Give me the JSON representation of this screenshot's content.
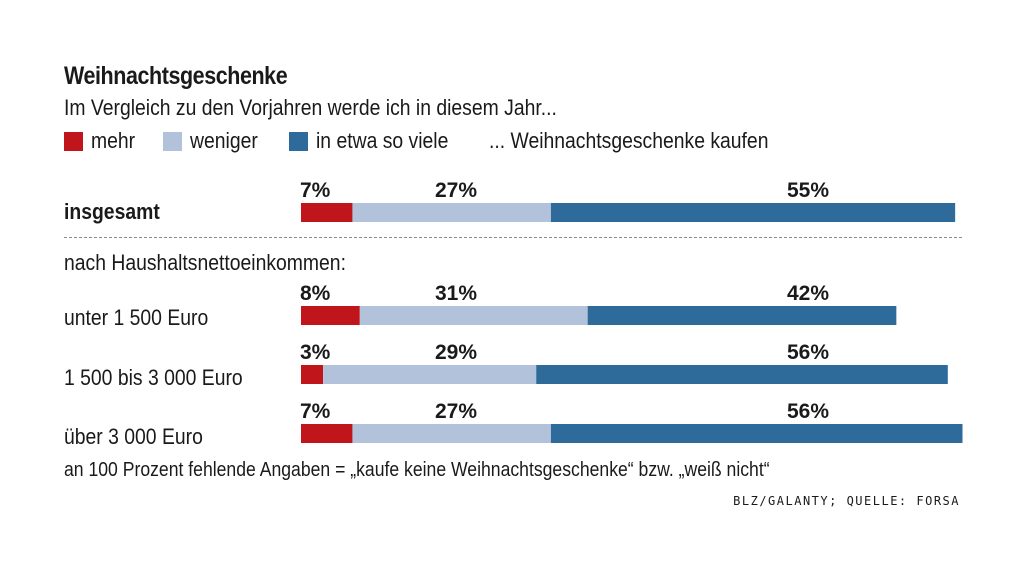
{
  "title": "Weihnachtsgeschenke",
  "subtitle": "Im Vergleich zu den Vorjahren werde ich in diesem Jahr...",
  "legend": {
    "items": [
      {
        "label": "mehr",
        "color": "#c0161b"
      },
      {
        "label": "weniger",
        "color": "#b3c2db"
      },
      {
        "label": "in etwa so viele",
        "color": "#2f6b9a"
      }
    ],
    "note": "... Weihnachtsgeschenke kaufen"
  },
  "group_label": "nach Haushaltsnettoeinkommen:",
  "footnote": "an 100 Prozent fehlende Angaben = „kaufe keine Weihnachtsgeschenke“ bzw. „weiß nicht“",
  "source": "BLZ/GALANTY; QUELLE: FORSA",
  "chart_data": {
    "type": "bar",
    "orientation": "horizontal",
    "stacked": true,
    "unit": "%",
    "categories": [
      "insgesamt",
      "unter 1 500 Euro",
      "1 500 bis 3 000 Euro",
      "über 3 000 Euro"
    ],
    "series": [
      {
        "name": "mehr",
        "values": [
          7,
          8,
          3,
          7
        ],
        "color": "#c0161b"
      },
      {
        "name": "weniger",
        "values": [
          27,
          31,
          29,
          27
        ],
        "color": "#b3c2db"
      },
      {
        "name": "in etwa so viele",
        "values": [
          55,
          42,
          56,
          56
        ],
        "color": "#2f6b9a"
      }
    ],
    "value_labels": [
      [
        "7%",
        "27%",
        "55%"
      ],
      [
        "8%",
        "31%",
        "42%"
      ],
      [
        "3%",
        "29%",
        "56%"
      ],
      [
        "7%",
        "27%",
        "56%"
      ]
    ],
    "xlim": [
      0,
      100
    ],
    "grid": false,
    "legend_position": "top"
  }
}
